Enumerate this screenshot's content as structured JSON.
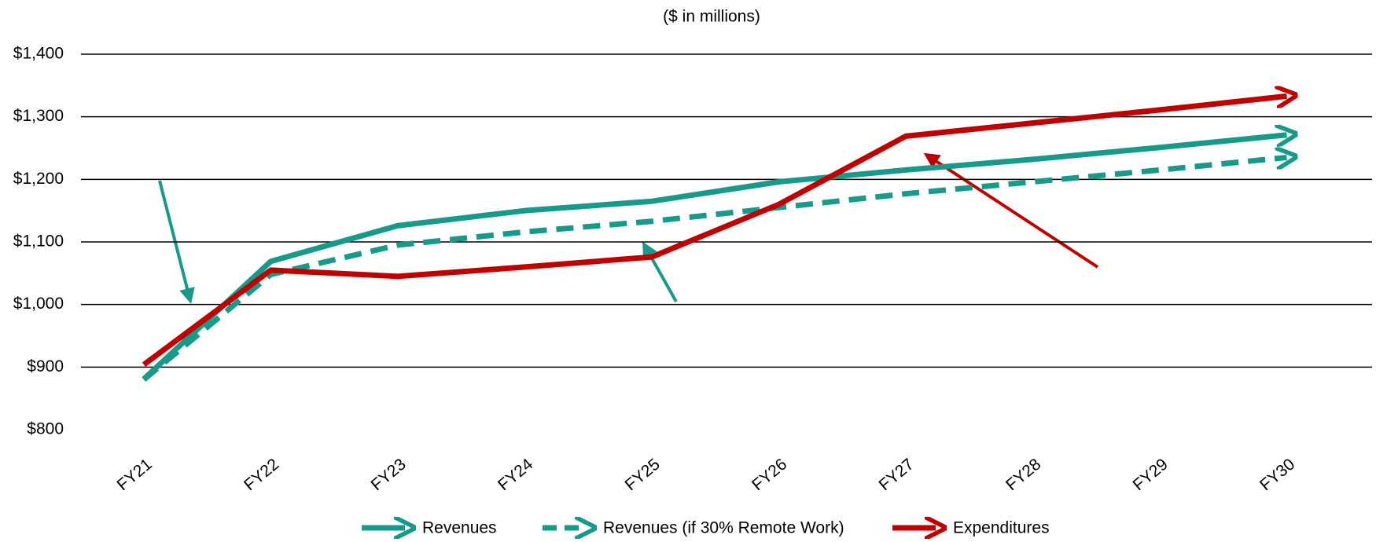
{
  "chart_data": {
    "type": "line",
    "title": "($ in millions)",
    "categories": [
      "FY21",
      "FY22",
      "FY23",
      "FY24",
      "FY25",
      "FY26",
      "FY27",
      "FY28",
      "FY29",
      "FY30"
    ],
    "series": [
      {
        "name": "Revenues",
        "color": "#179a8a",
        "style": "solid",
        "values": [
          881,
          1069,
          1126,
          1150,
          1165,
          1196,
          1215,
          1232,
          1251,
          1271
        ]
      },
      {
        "name": "Revenues (if 30% Remote Work)",
        "color": "#179a8a",
        "style": "dashed",
        "values": [
          880,
          1048,
          1095,
          1116,
          1133,
          1155,
          1177,
          1196,
          1215,
          1235
        ]
      },
      {
        "name": "Expenditures",
        "color": "#c00000",
        "style": "solid",
        "values": [
          904,
          1055,
          1045,
          1060,
          1076,
          1160,
          1269,
          1290,
          1311,
          1333
        ]
      }
    ],
    "ylim": [
      800,
      1400
    ],
    "yticks": [
      {
        "value": 800,
        "label": "$800"
      },
      {
        "value": 900,
        "label": "$900"
      },
      {
        "value": 1000,
        "label": "$1,000"
      },
      {
        "value": 1100,
        "label": "$1,100"
      },
      {
        "value": 1200,
        "label": "$1,200"
      },
      {
        "value": 1300,
        "label": "$1,300"
      },
      {
        "value": 1400,
        "label": "$1,400"
      }
    ],
    "grid": true,
    "legend": "bottom"
  }
}
